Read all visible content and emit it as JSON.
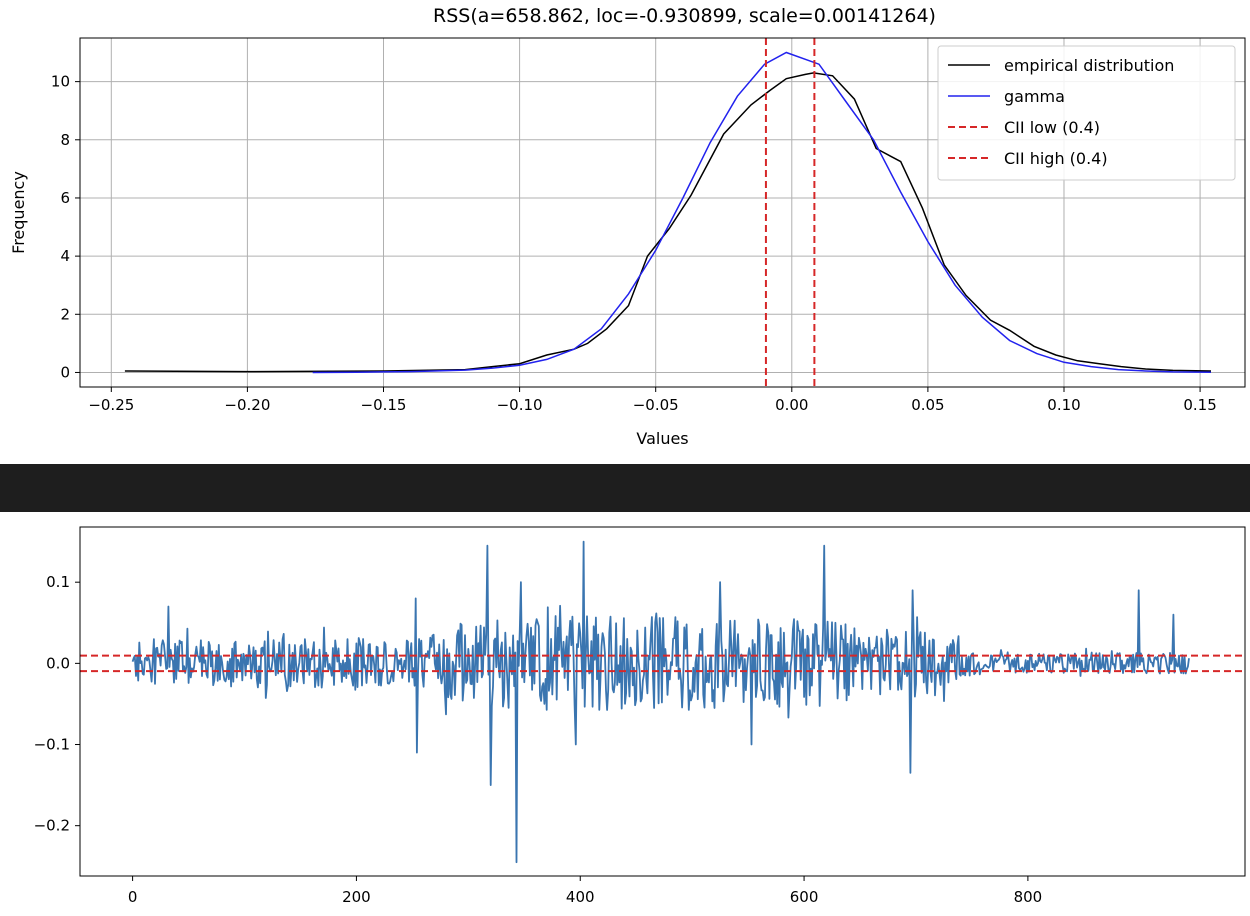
{
  "colors": {
    "empirical": "#000000",
    "gamma": "#2222ee",
    "cii": "#d62728",
    "series": "#3a75b0",
    "separator": "#1e1e1e",
    "grid": "#b0b0b0"
  },
  "chart_data": [
    {
      "type": "line",
      "title": "RSS(a=658.862, loc=-0.930899, scale=0.00141264)",
      "xlabel": "Values",
      "ylabel": "Frequency",
      "xlim": [
        -0.2615,
        0.1665
      ],
      "ylim": [
        -0.5,
        11.5
      ],
      "grid": true,
      "legend_position": "top-right",
      "x_ticks": [
        -0.25,
        -0.2,
        -0.15,
        -0.1,
        -0.05,
        0.0,
        0.05,
        0.1,
        0.15
      ],
      "x_tick_labels": [
        "−0.25",
        "−0.20",
        "−0.15",
        "−0.10",
        "−0.05",
        "0.00",
        "0.05",
        "0.10",
        "0.15"
      ],
      "y_ticks": [
        0,
        2,
        4,
        6,
        8,
        10
      ],
      "y_tick_labels": [
        "0",
        "2",
        "4",
        "6",
        "8",
        "10"
      ],
      "series": [
        {
          "name": "empirical distribution",
          "style": "solid",
          "x": [
            -0.245,
            -0.2,
            -0.15,
            -0.12,
            -0.11,
            -0.1,
            -0.09,
            -0.08,
            -0.075,
            -0.068,
            -0.06,
            -0.053,
            -0.045,
            -0.037,
            -0.025,
            -0.015,
            -0.008,
            -0.002,
            0.005,
            0.008,
            0.015,
            0.023,
            0.031,
            0.04,
            0.048,
            0.056,
            0.064,
            0.073,
            0.08,
            0.089,
            0.097,
            0.105,
            0.113,
            0.121,
            0.13,
            0.14,
            0.154
          ],
          "y": [
            0.05,
            0.03,
            0.05,
            0.1,
            0.2,
            0.3,
            0.6,
            0.8,
            1.0,
            1.5,
            2.3,
            4.0,
            4.95,
            6.1,
            8.2,
            9.2,
            9.7,
            10.1,
            10.25,
            10.3,
            10.2,
            9.4,
            7.7,
            7.25,
            5.65,
            3.7,
            2.65,
            1.8,
            1.45,
            0.9,
            0.6,
            0.4,
            0.3,
            0.2,
            0.12,
            0.07,
            0.05
          ]
        },
        {
          "name": "gamma",
          "style": "solid",
          "x": [
            -0.176,
            -0.16,
            -0.14,
            -0.12,
            -0.11,
            -0.1,
            -0.09,
            -0.08,
            -0.07,
            -0.06,
            -0.05,
            -0.04,
            -0.03,
            -0.02,
            -0.01,
            -0.002,
            0.01,
            0.02,
            0.03,
            0.04,
            0.05,
            0.06,
            0.07,
            0.08,
            0.09,
            0.1,
            0.11,
            0.12,
            0.13,
            0.14,
            0.154
          ],
          "y": [
            0.0,
            0.01,
            0.03,
            0.08,
            0.15,
            0.25,
            0.45,
            0.8,
            1.5,
            2.7,
            4.2,
            6.0,
            7.9,
            9.5,
            10.6,
            11.0,
            10.6,
            9.3,
            8.0,
            6.2,
            4.5,
            3.0,
            1.9,
            1.1,
            0.65,
            0.35,
            0.2,
            0.1,
            0.05,
            0.02,
            0.01
          ]
        },
        {
          "name": "CII low (0.4)",
          "style": "dashed",
          "vline": -0.0095
        },
        {
          "name": "CII high (0.4)",
          "style": "dashed",
          "vline": 0.0083
        }
      ]
    },
    {
      "type": "line",
      "title": "",
      "xlabel": "",
      "ylabel": "",
      "xlim": [
        -47,
        994
      ],
      "ylim": [
        -0.262,
        0.168
      ],
      "grid": false,
      "x_ticks": [
        0,
        200,
        400,
        600,
        800
      ],
      "x_tick_labels": [
        "0",
        "200",
        "400",
        "600",
        "800"
      ],
      "y_ticks": [
        -0.2,
        -0.1,
        0.0,
        0.1
      ],
      "y_tick_labels": [
        "−0.2",
        "−0.1",
        "0.0",
        "0.1"
      ],
      "hlines": [
        0.0095,
        -0.0095
      ],
      "series": [
        {
          "name": "",
          "n_points": 945,
          "anchors": [
            [
              32,
              0.07
            ],
            [
              254,
              -0.11
            ],
            [
              253,
              0.08
            ],
            [
              317,
              0.145
            ],
            [
              320,
              -0.15
            ],
            [
              343,
              -0.245
            ],
            [
              347,
              0.1
            ],
            [
              403,
              0.15
            ],
            [
              396,
              -0.1
            ],
            [
              525,
              0.1
            ],
            [
              553,
              -0.1
            ],
            [
              618,
              0.145
            ],
            [
              695,
              -0.135
            ],
            [
              697,
              0.09
            ],
            [
              899,
              0.09
            ],
            [
              930,
              0.06
            ]
          ],
          "amplitude_envelope": [
            [
              0,
              0.03
            ],
            [
              150,
              0.03
            ],
            [
              250,
              0.03
            ],
            [
              300,
              0.05
            ],
            [
              360,
              0.06
            ],
            [
              600,
              0.055
            ],
            [
              710,
              0.04
            ],
            [
              760,
              0.012
            ],
            [
              940,
              0.013
            ]
          ]
        }
      ]
    }
  ]
}
